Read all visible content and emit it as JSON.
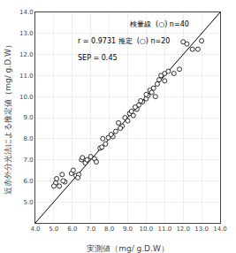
{
  "chart_data": {
    "type": "scatter",
    "xlabel": "実測値（mg/ g.D.W）",
    "ylabel": "近赤外分光法による推定値（mg/ g.D.W）",
    "xlim": [
      4.0,
      14.0
    ],
    "ylim": [
      4.0,
      14.0
    ],
    "xticks": [
      {
        "value": 4.0,
        "label": "4.0"
      },
      {
        "value": 5.0,
        "label": "5.0"
      },
      {
        "value": 6.0,
        "label": "6.0"
      },
      {
        "value": 7.0,
        "label": "7.0"
      },
      {
        "value": 8.0,
        "label": "8.0"
      },
      {
        "value": 9.0,
        "label": "9.0"
      },
      {
        "value": 10.0,
        "label": "10.0"
      },
      {
        "value": 11.0,
        "label": "11.0"
      },
      {
        "value": 12.0,
        "label": "12.0"
      },
      {
        "value": 13.0,
        "label": "13.0"
      },
      {
        "value": 14.0,
        "label": "14.0"
      }
    ],
    "yticks": [
      {
        "value": 5.0,
        "label": "5.0"
      },
      {
        "value": 6.0,
        "label": "6.0"
      },
      {
        "value": 7.0,
        "label": "7.0"
      },
      {
        "value": 8.0,
        "label": "8.0"
      },
      {
        "value": 9.0,
        "label": "9.0"
      },
      {
        "value": 10.0,
        "label": "10.0"
      },
      {
        "value": 11.0,
        "label": "11.0"
      },
      {
        "value": 12.0,
        "label": "12.0"
      },
      {
        "value": 13.0,
        "label": "13.0"
      },
      {
        "value": 14.0,
        "label": "14.0"
      }
    ],
    "annotations": [
      "検量線  (○) n=40",
      "r = 0.9731 推定  (○) n=20",
      "SEP = 0.45"
    ],
    "series": [
      {
        "type": "line",
        "color": "#000000",
        "x": [
          4.0,
          14.0
        ],
        "values": [
          4.0,
          14.0
        ]
      },
      {
        "type": "scatter",
        "color": "#000000",
        "marker": "open_circle",
        "x": [
          5.1,
          5.15,
          5.3,
          5.45,
          5.6,
          5.95,
          6.05,
          6.2,
          6.35,
          6.5,
          6.55,
          6.7,
          7.0,
          7.2,
          7.5,
          7.65,
          7.8,
          7.95,
          8.2,
          8.35,
          8.5,
          8.7,
          8.85,
          9.0,
          9.1,
          9.3,
          9.5,
          9.6,
          9.8,
          10.0,
          10.1,
          10.2,
          10.4,
          10.6,
          10.8,
          11.0,
          11.2,
          12.2,
          12.5,
          13.0
        ],
        "values": [
          5.9,
          6.1,
          5.75,
          6.3,
          5.95,
          6.35,
          6.5,
          6.25,
          6.3,
          7.0,
          7.1,
          6.85,
          7.15,
          7.05,
          7.55,
          8.0,
          7.75,
          8.05,
          8.1,
          8.35,
          8.75,
          8.6,
          9.0,
          8.85,
          9.2,
          9.1,
          9.4,
          9.6,
          9.75,
          9.9,
          10.05,
          10.3,
          10.4,
          10.6,
          11.0,
          11.1,
          11.2,
          12.5,
          12.25,
          12.65
        ]
      },
      {
        "type": "scatter",
        "color": "#000000",
        "marker": "open_circle",
        "x": [
          5.0,
          5.5,
          6.3,
          6.8,
          7.3,
          7.6,
          8.1,
          8.6,
          9.2,
          9.4,
          9.7,
          10.0,
          10.3,
          10.5,
          10.7,
          11.0,
          11.5,
          11.8,
          12.0,
          12.8
        ],
        "values": [
          5.75,
          6.0,
          6.15,
          7.0,
          6.9,
          7.6,
          8.2,
          8.5,
          9.3,
          9.5,
          9.8,
          10.1,
          10.2,
          10.0,
          10.8,
          10.75,
          11.1,
          11.3,
          12.6,
          12.25
        ]
      }
    ]
  }
}
